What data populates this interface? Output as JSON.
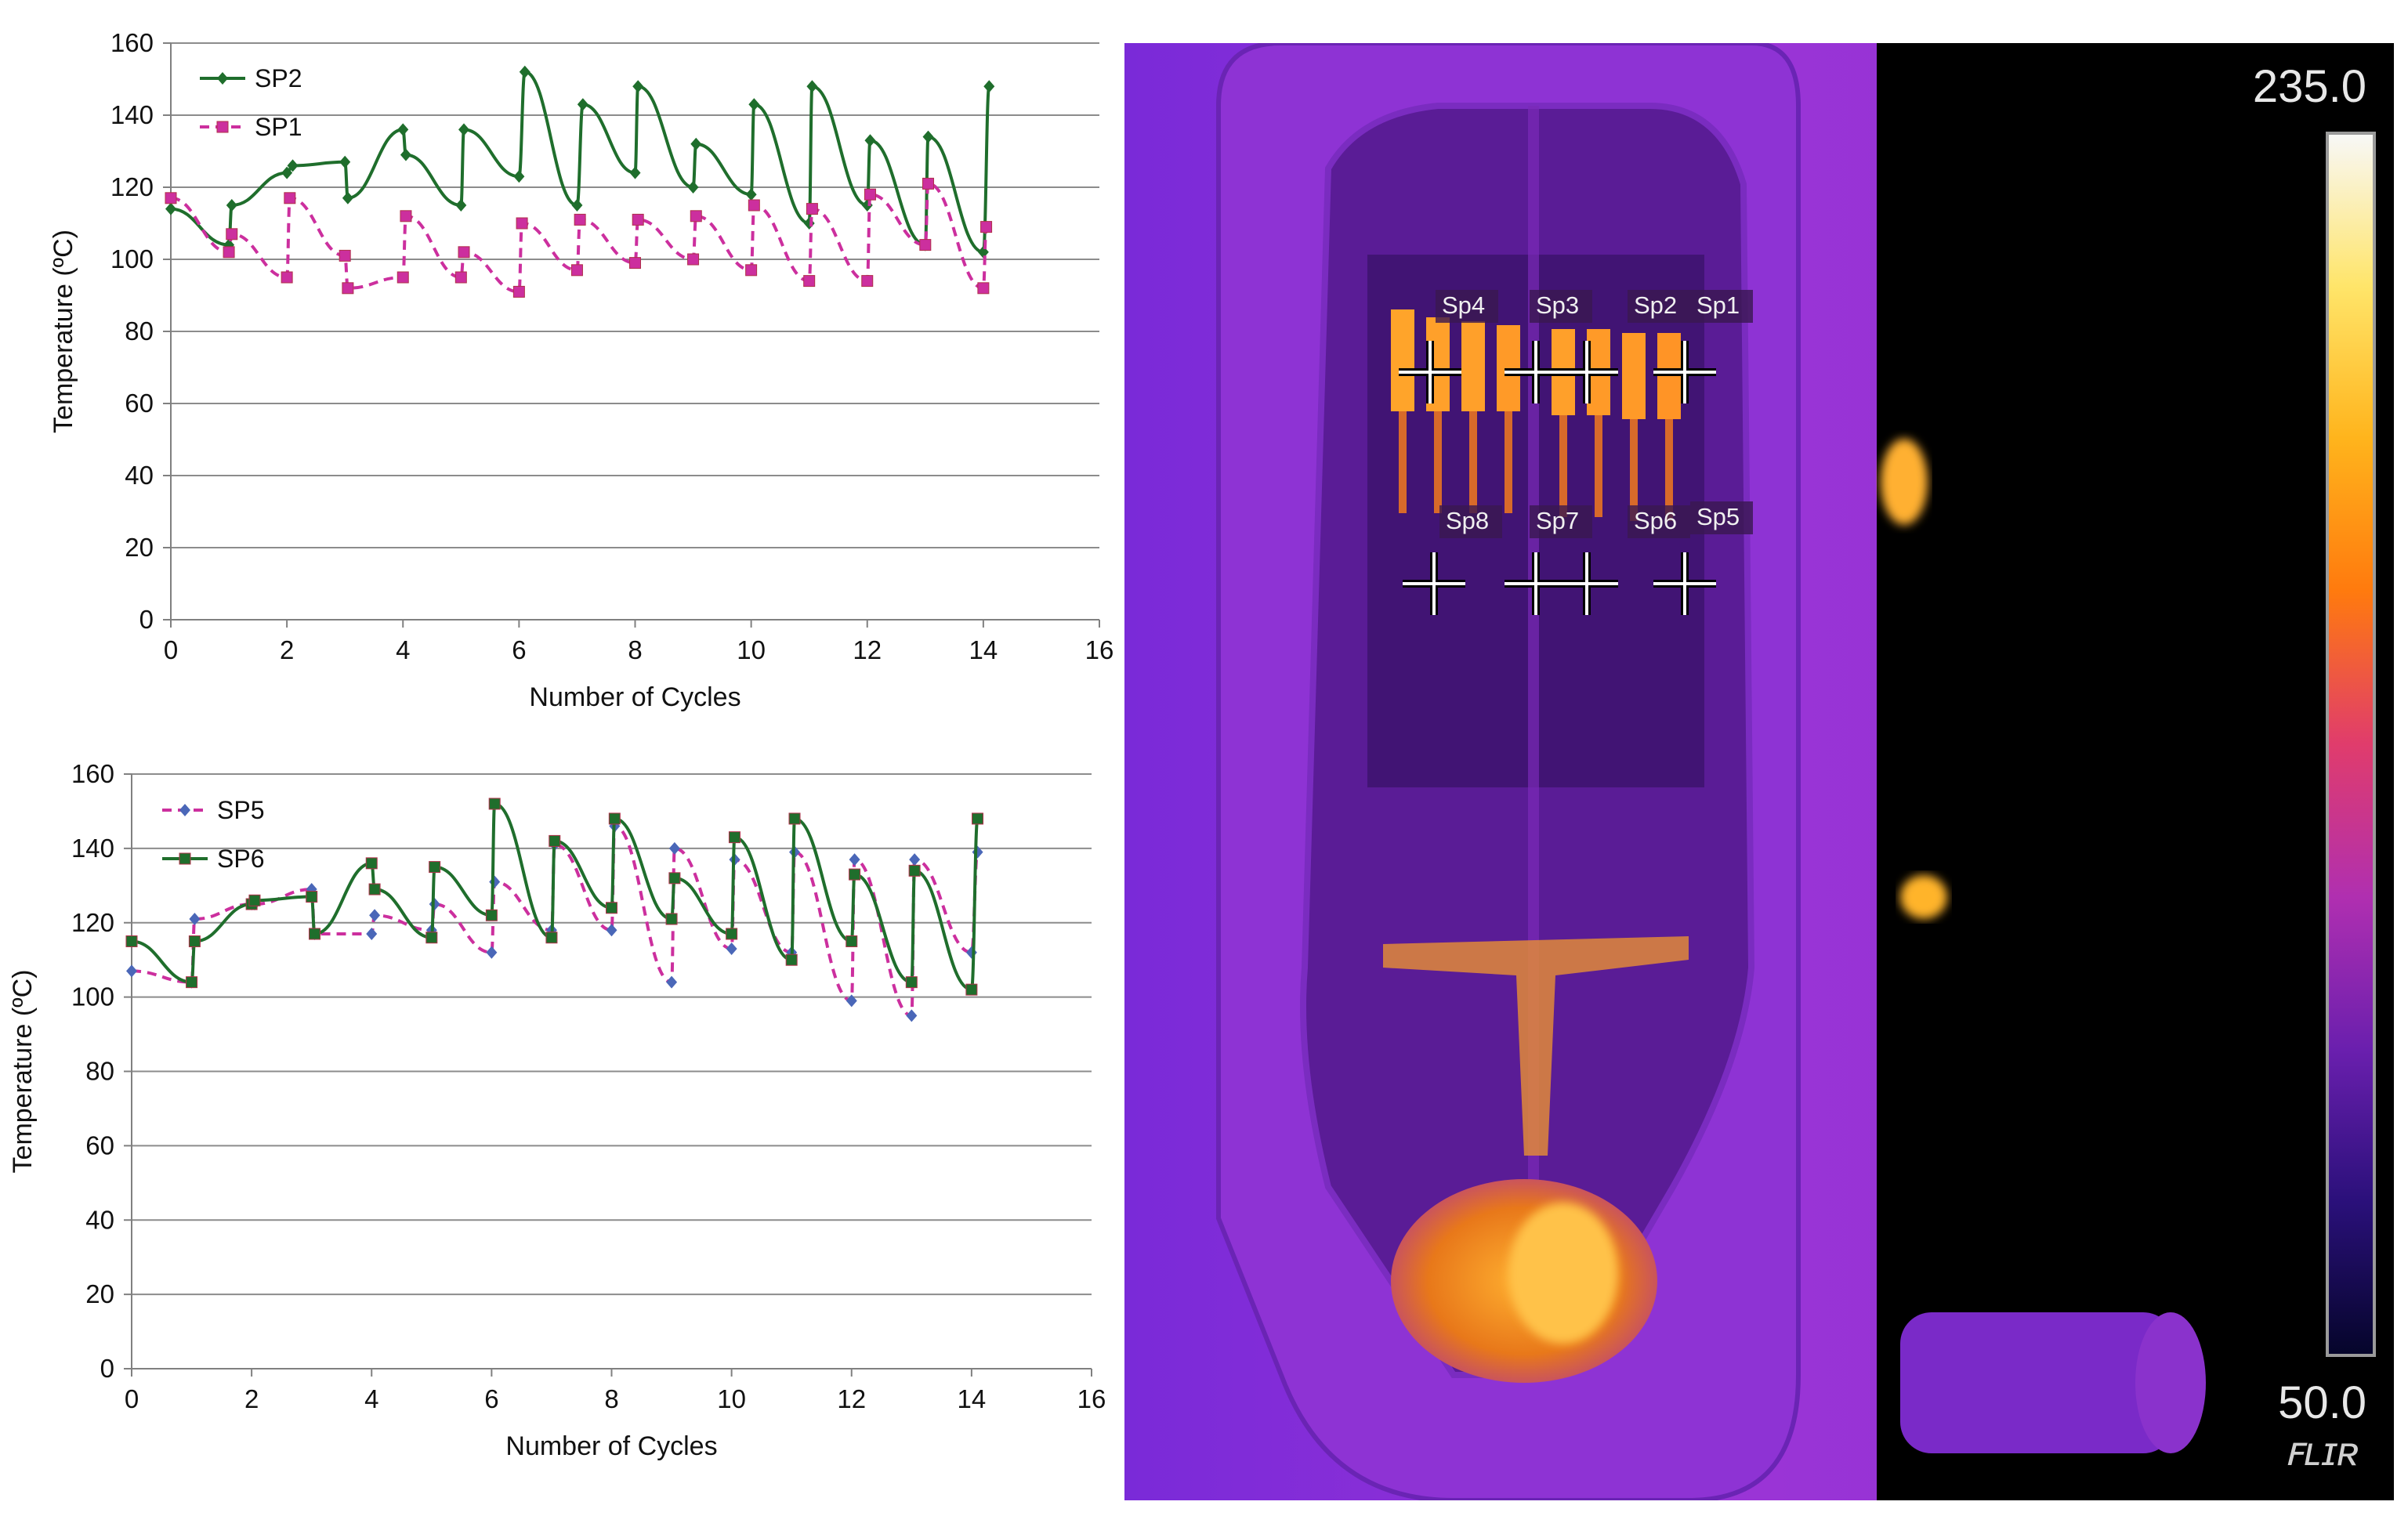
{
  "chart_data": [
    {
      "type": "line",
      "xlabel": "Number of Cycles",
      "ylabel": "Temperature (ºC)",
      "xlim": [
        0,
        16
      ],
      "ylim": [
        0,
        160
      ],
      "xticks": [
        0,
        2,
        4,
        6,
        8,
        10,
        12,
        14,
        16
      ],
      "yticks": [
        0,
        20,
        40,
        60,
        80,
        100,
        120,
        140,
        160
      ],
      "grid": "horizontal",
      "legend": "top-left",
      "series": [
        {
          "name": "SP2",
          "color": "#1f6e2c",
          "marker": "diamond",
          "style": "solid",
          "x": [
            0,
            1,
            1.05,
            2,
            2.1,
            3,
            3.05,
            4,
            4.05,
            5,
            5.05,
            6,
            6.1,
            7,
            7.1,
            8,
            8.05,
            9,
            9.05,
            10,
            10.05,
            11,
            11.05,
            12,
            12.05,
            13,
            13.05,
            14,
            14.1
          ],
          "y": [
            114,
            104,
            115,
            124,
            126,
            127,
            117,
            136,
            129,
            115,
            136,
            123,
            152,
            115,
            143,
            124,
            148,
            120,
            132,
            118,
            143,
            110,
            148,
            115,
            133,
            104,
            134,
            102,
            148
          ]
        },
        {
          "name": "SP1",
          "color": "#cc2f9e",
          "marker": "square",
          "style": "dashed",
          "x": [
            0,
            1,
            1.05,
            2,
            2.05,
            3,
            3.05,
            4,
            4.05,
            5,
            5.05,
            6,
            6.05,
            7,
            7.05,
            8,
            8.05,
            9,
            9.05,
            10,
            10.05,
            11,
            11.05,
            12,
            12.05,
            13,
            13.05,
            14,
            14.05
          ],
          "y": [
            117,
            102,
            107,
            95,
            117,
            101,
            92,
            95,
            112,
            95,
            102,
            91,
            110,
            97,
            111,
            99,
            111,
            100,
            112,
            97,
            115,
            94,
            114,
            94,
            118,
            104,
            121,
            92,
            109
          ]
        }
      ]
    },
    {
      "type": "line",
      "xlabel": "Number of Cycles",
      "ylabel": "Temperature (ºC)",
      "xlim": [
        0,
        16
      ],
      "ylim": [
        0,
        160
      ],
      "xticks": [
        0,
        2,
        4,
        6,
        8,
        10,
        12,
        14,
        16
      ],
      "yticks": [
        0,
        20,
        40,
        60,
        80,
        100,
        120,
        140,
        160
      ],
      "grid": "horizontal",
      "legend": "top-left",
      "series": [
        {
          "name": "SP5",
          "color": "#cc2f9e",
          "marker": "diamond",
          "style": "dashed",
          "x": [
            0,
            1,
            1.05,
            2,
            2.05,
            3,
            3.05,
            4,
            4.05,
            5,
            5.05,
            6,
            6.05,
            7,
            7.05,
            8,
            8.05,
            9,
            9.05,
            10,
            10.05,
            11,
            11.05,
            12,
            12.05,
            13,
            13.05,
            14,
            14.1
          ],
          "y": [
            107,
            104,
            121,
            125,
            125,
            129,
            117,
            117,
            122,
            118,
            125,
            112,
            131,
            118,
            141,
            118,
            146,
            104,
            140,
            113,
            137,
            112,
            139,
            99,
            137,
            95,
            137,
            112,
            139
          ]
        },
        {
          "name": "SP6",
          "color": "#1f6e2c",
          "marker": "square",
          "style": "solid",
          "x": [
            0,
            1,
            1.05,
            2,
            2.05,
            3,
            3.05,
            4,
            4.05,
            5,
            5.05,
            6,
            6.05,
            7,
            7.05,
            8,
            8.05,
            9,
            9.05,
            10,
            10.05,
            11,
            11.05,
            12,
            12.05,
            13,
            13.05,
            14,
            14.1
          ],
          "y": [
            115,
            104,
            115,
            125,
            126,
            127,
            117,
            136,
            129,
            116,
            135,
            122,
            152,
            116,
            142,
            124,
            148,
            121,
            132,
            117,
            143,
            110,
            148,
            115,
            133,
            104,
            134,
            102,
            148
          ]
        }
      ]
    }
  ],
  "thermal_image": {
    "scale_max": "235.0",
    "scale_min": "50.0",
    "logo": "FLIR",
    "palette": [
      "#f8f8f8",
      "#ffe56a",
      "#ffb41c",
      "#ff7a0e",
      "#e03c6c",
      "#b02fb0",
      "#6a1fae",
      "#2a107a",
      "#05052a"
    ],
    "spots": [
      "Sp4",
      "Sp3",
      "Sp2",
      "Sp1",
      "Sp8",
      "Sp7",
      "Sp6",
      "Sp5"
    ]
  }
}
